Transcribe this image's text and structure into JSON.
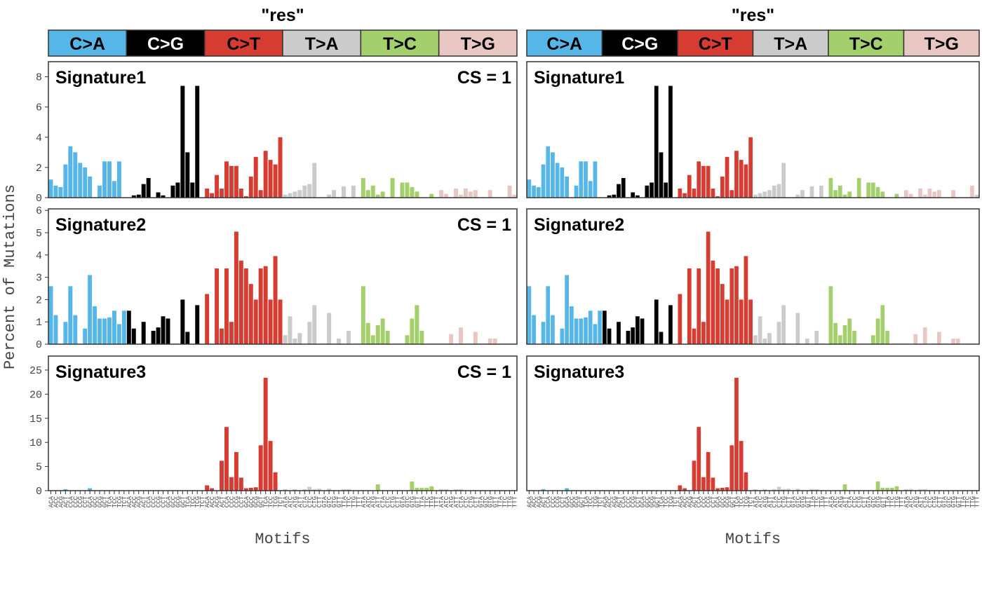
{
  "chart_data": {
    "type": "bar",
    "ylabel": "Percent of Mutations",
    "facets": [
      {
        "title": "\"res\"",
        "xlabel": "Motifs"
      },
      {
        "title": "\"res\"",
        "xlabel": "Motifs"
      }
    ],
    "mutation_types": [
      {
        "name": "C>A",
        "color": "#56b6e8",
        "text_color": "#000000"
      },
      {
        "name": "C>G",
        "color": "#000000",
        "text_color": "#ffffff"
      },
      {
        "name": "C>T",
        "color": "#d63c32",
        "text_color": "#000000"
      },
      {
        "name": "T>A",
        "color": "#cbcbcb",
        "text_color": "#000000"
      },
      {
        "name": "T>C",
        "color": "#a3cf6c",
        "text_color": "#000000"
      },
      {
        "name": "T>G",
        "color": "#e8c7c3",
        "text_color": "#000000"
      }
    ],
    "categories": [
      "ACA",
      "ACC",
      "ACG",
      "ACT",
      "CCA",
      "CCC",
      "CCG",
      "CCT",
      "GCA",
      "GCC",
      "GCG",
      "GCT",
      "TCA",
      "TCC",
      "TCG",
      "TCT",
      "ACA",
      "ACC",
      "ACG",
      "ACT",
      "CCA",
      "CCC",
      "CCG",
      "CCT",
      "GCA",
      "GCC",
      "GCG",
      "GCT",
      "TCA",
      "TCC",
      "TCG",
      "TCT",
      "ACA",
      "ACC",
      "ACG",
      "ACT",
      "CCA",
      "CCC",
      "CCG",
      "CCT",
      "GCA",
      "GCC",
      "GCG",
      "GCT",
      "TCA",
      "TCC",
      "TCG",
      "TCT",
      "ATA",
      "ATC",
      "ATG",
      "ATT",
      "CTA",
      "CTC",
      "CTG",
      "CTT",
      "GTA",
      "GTC",
      "GTG",
      "GTT",
      "TTA",
      "TTC",
      "TTG",
      "TTT",
      "ATA",
      "ATC",
      "ATG",
      "ATT",
      "CTA",
      "CTC",
      "CTG",
      "CTT",
      "GTA",
      "GTC",
      "GTG",
      "GTT",
      "TTA",
      "TTC",
      "TTG",
      "TTT",
      "ATA",
      "ATC",
      "ATG",
      "ATT",
      "CTA",
      "CTC",
      "CTG",
      "CTT",
      "GTA",
      "GTC",
      "GTG",
      "GTT",
      "TTA",
      "TTC",
      "TTG",
      "TTT"
    ],
    "panels": [
      {
        "name": "Signature1",
        "annotation": "CS = 1",
        "ylim": [
          0,
          9
        ],
        "yticks": [
          0,
          2,
          4,
          6,
          8
        ],
        "values": [
          1.2,
          0.8,
          0.7,
          2.2,
          3.4,
          3.0,
          2.3,
          2.0,
          1.4,
          0,
          0.8,
          2.4,
          2.4,
          1.1,
          2.4,
          0,
          0,
          0.15,
          0.2,
          0.9,
          1.3,
          0,
          0.35,
          0.15,
          0,
          0.8,
          1.0,
          7.4,
          3.0,
          1.0,
          7.4,
          0,
          0.6,
          0.3,
          1.5,
          0.6,
          2.4,
          2.1,
          2.1,
          0.6,
          0.1,
          1.4,
          2.7,
          0.5,
          3.1,
          2.5,
          2.2,
          4.0,
          0.2,
          0.3,
          0.4,
          0.5,
          0.8,
          0.9,
          2.3,
          0,
          0,
          0.2,
          0.5,
          0,
          0.75,
          0,
          0.8,
          0,
          1.3,
          0.5,
          0.8,
          0.2,
          0.4,
          0,
          1.3,
          0,
          1.0,
          1.0,
          0.7,
          0.4,
          0,
          0,
          0.25,
          0,
          0.5,
          0.25,
          0,
          0.6,
          0.2,
          0.6,
          0.4,
          0.5,
          0,
          0,
          0.5,
          0,
          0,
          0,
          0.8,
          0.2
        ]
      },
      {
        "name": "Signature2",
        "annotation": "CS = 1",
        "ylim": [
          0,
          6.07
        ],
        "yticks": [
          0,
          1,
          2,
          3,
          4,
          5,
          6
        ],
        "values": [
          2.6,
          1.3,
          0,
          1.0,
          2.6,
          1.3,
          0,
          0.7,
          3.1,
          1.7,
          1.15,
          1.15,
          1.2,
          1.5,
          0.9,
          1.5,
          1.5,
          0.7,
          0,
          1.0,
          0,
          0.6,
          0.75,
          1.25,
          1.15,
          0,
          0,
          2.0,
          0.55,
          0,
          1.75,
          0,
          2.25,
          0,
          3.4,
          0.7,
          3.4,
          1.0,
          5.05,
          3.75,
          3.4,
          2.7,
          2.0,
          3.4,
          3.5,
          2.0,
          3.95,
          2.0,
          0.4,
          1.25,
          0.25,
          0.5,
          0,
          1.0,
          1.75,
          0,
          0,
          1.4,
          0,
          0.25,
          0,
          0.6,
          0,
          0,
          2.6,
          0.95,
          0.4,
          0.85,
          1.15,
          0.6,
          0,
          0,
          0,
          0.4,
          1.15,
          1.75,
          0.6,
          0,
          0,
          0,
          0,
          0,
          0.45,
          0,
          0.75,
          0,
          0,
          0.55,
          0,
          0,
          0.25,
          0.25,
          0,
          0,
          0,
          0
        ]
      },
      {
        "name": "Signature3",
        "annotation": "CS = 1",
        "ylim": [
          0,
          27.9
        ],
        "yticks": [
          0,
          5,
          10,
          15,
          20,
          25
        ],
        "values": [
          0,
          0,
          0,
          0.3,
          0,
          0,
          0,
          0,
          0.5,
          0,
          0,
          0,
          0,
          0,
          0,
          0,
          0,
          0,
          0,
          0,
          0,
          0,
          0,
          0,
          0,
          0,
          0,
          0,
          0,
          0,
          0,
          0,
          1.1,
          0.5,
          0,
          6.2,
          13.2,
          2.8,
          8.0,
          2.7,
          0.5,
          0.6,
          0.7,
          9.4,
          23.4,
          10.3,
          3.8,
          0,
          0.3,
          0,
          0.3,
          0,
          0.3,
          0.8,
          0.3,
          0.4,
          0,
          0.4,
          0,
          0,
          0.3,
          0.3,
          0,
          0,
          0,
          0,
          0,
          1.3,
          0,
          0,
          0,
          0,
          0,
          0,
          1.9,
          0.6,
          0.6,
          0.6,
          0.9,
          0,
          0.3,
          0.3,
          0,
          0.3,
          0.3,
          0,
          0,
          0,
          0,
          0,
          0,
          0,
          0,
          0,
          0,
          0
        ]
      }
    ]
  }
}
